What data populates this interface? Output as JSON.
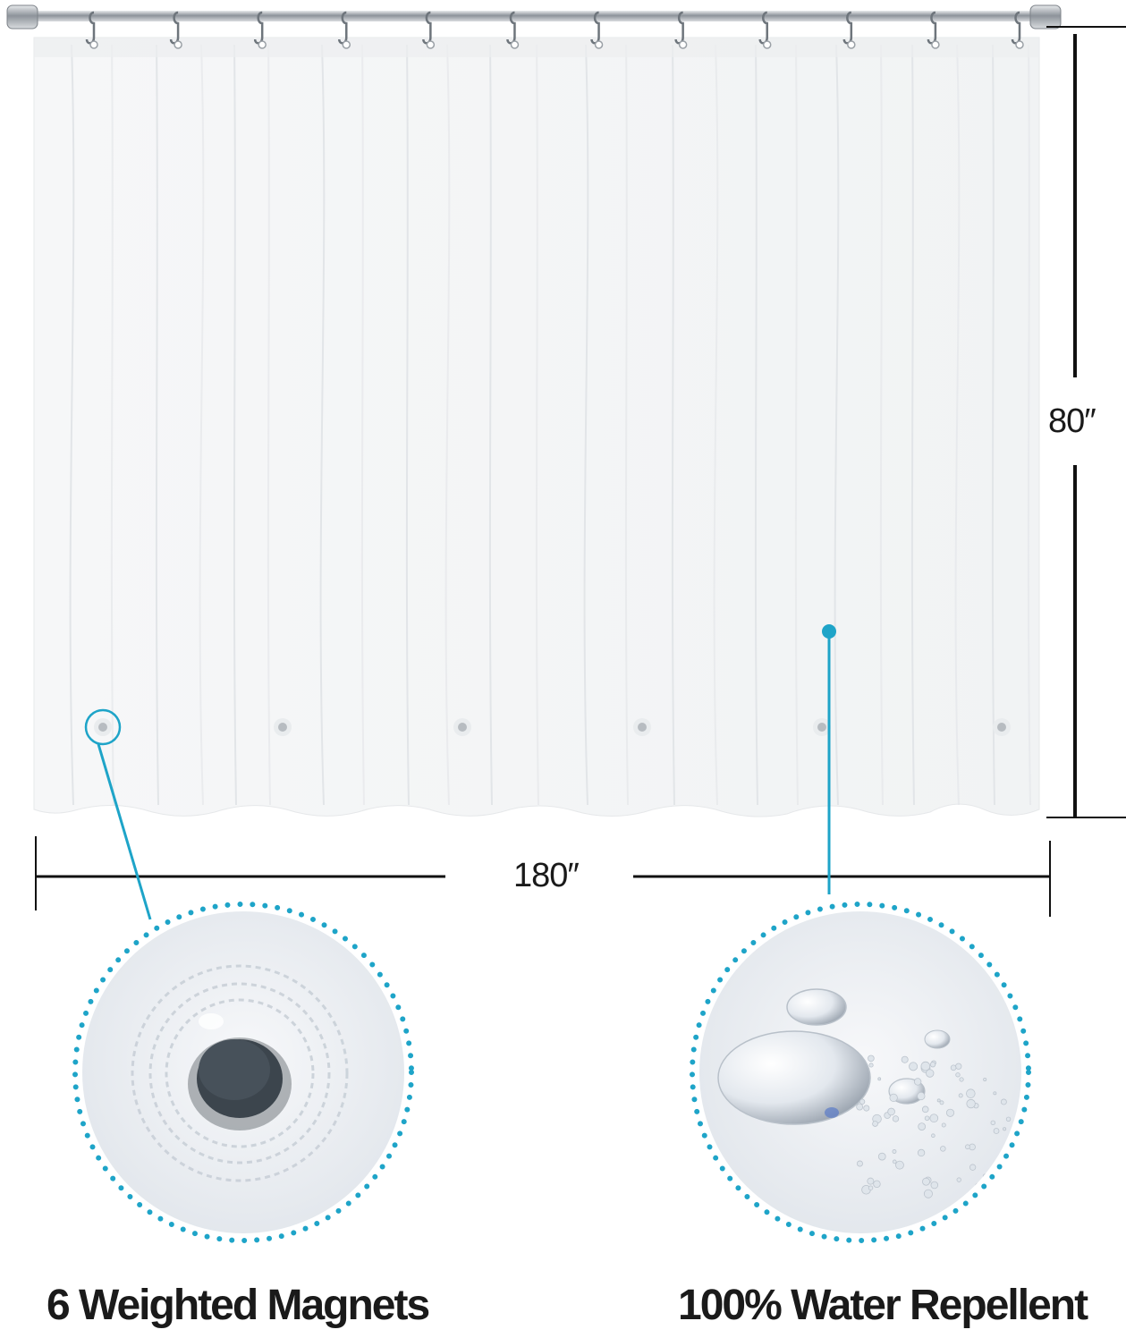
{
  "dimensions": {
    "height_label": "80″",
    "width_label": "180″"
  },
  "features": [
    {
      "caption": "6 Weighted Magnets",
      "icon": "magnet-closeup"
    },
    {
      "caption": "100% Water Repellent",
      "icon": "water-droplets-closeup"
    }
  ],
  "product": {
    "hook_count": 12,
    "magnet_count": 6
  },
  "colors": {
    "accent": "#1ea4c8",
    "rod": "#9aa0a6",
    "text": "#1a1a1a",
    "magnet": "#3c454d"
  }
}
